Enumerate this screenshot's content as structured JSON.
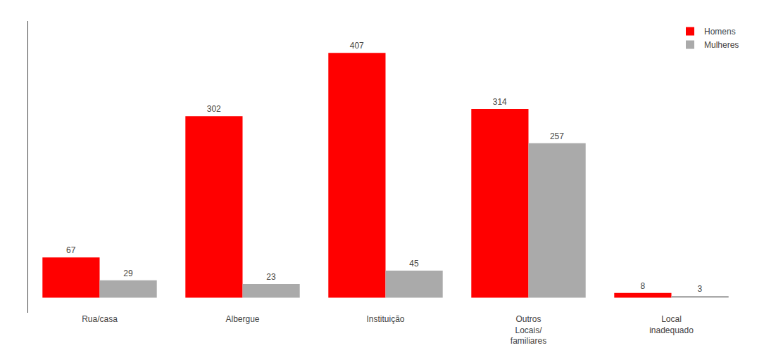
{
  "chart_data": {
    "type": "bar",
    "categories": [
      "Rua/casa",
      "Albergue",
      "Instituição",
      "Outros\nLocais/\nfamiliares",
      "Local\ninadequado"
    ],
    "series": [
      {
        "name": "Homens",
        "color": "#FF0000",
        "values": [
          67,
          302,
          407,
          314,
          8
        ]
      },
      {
        "name": "Mulheres",
        "color": "#AAAAAA",
        "values": [
          29,
          23,
          45,
          257,
          3
        ]
      }
    ],
    "ylim": [
      -25,
      460
    ],
    "data_labels": true,
    "tick_labels": "x",
    "grid": false,
    "legend": "upper right"
  }
}
